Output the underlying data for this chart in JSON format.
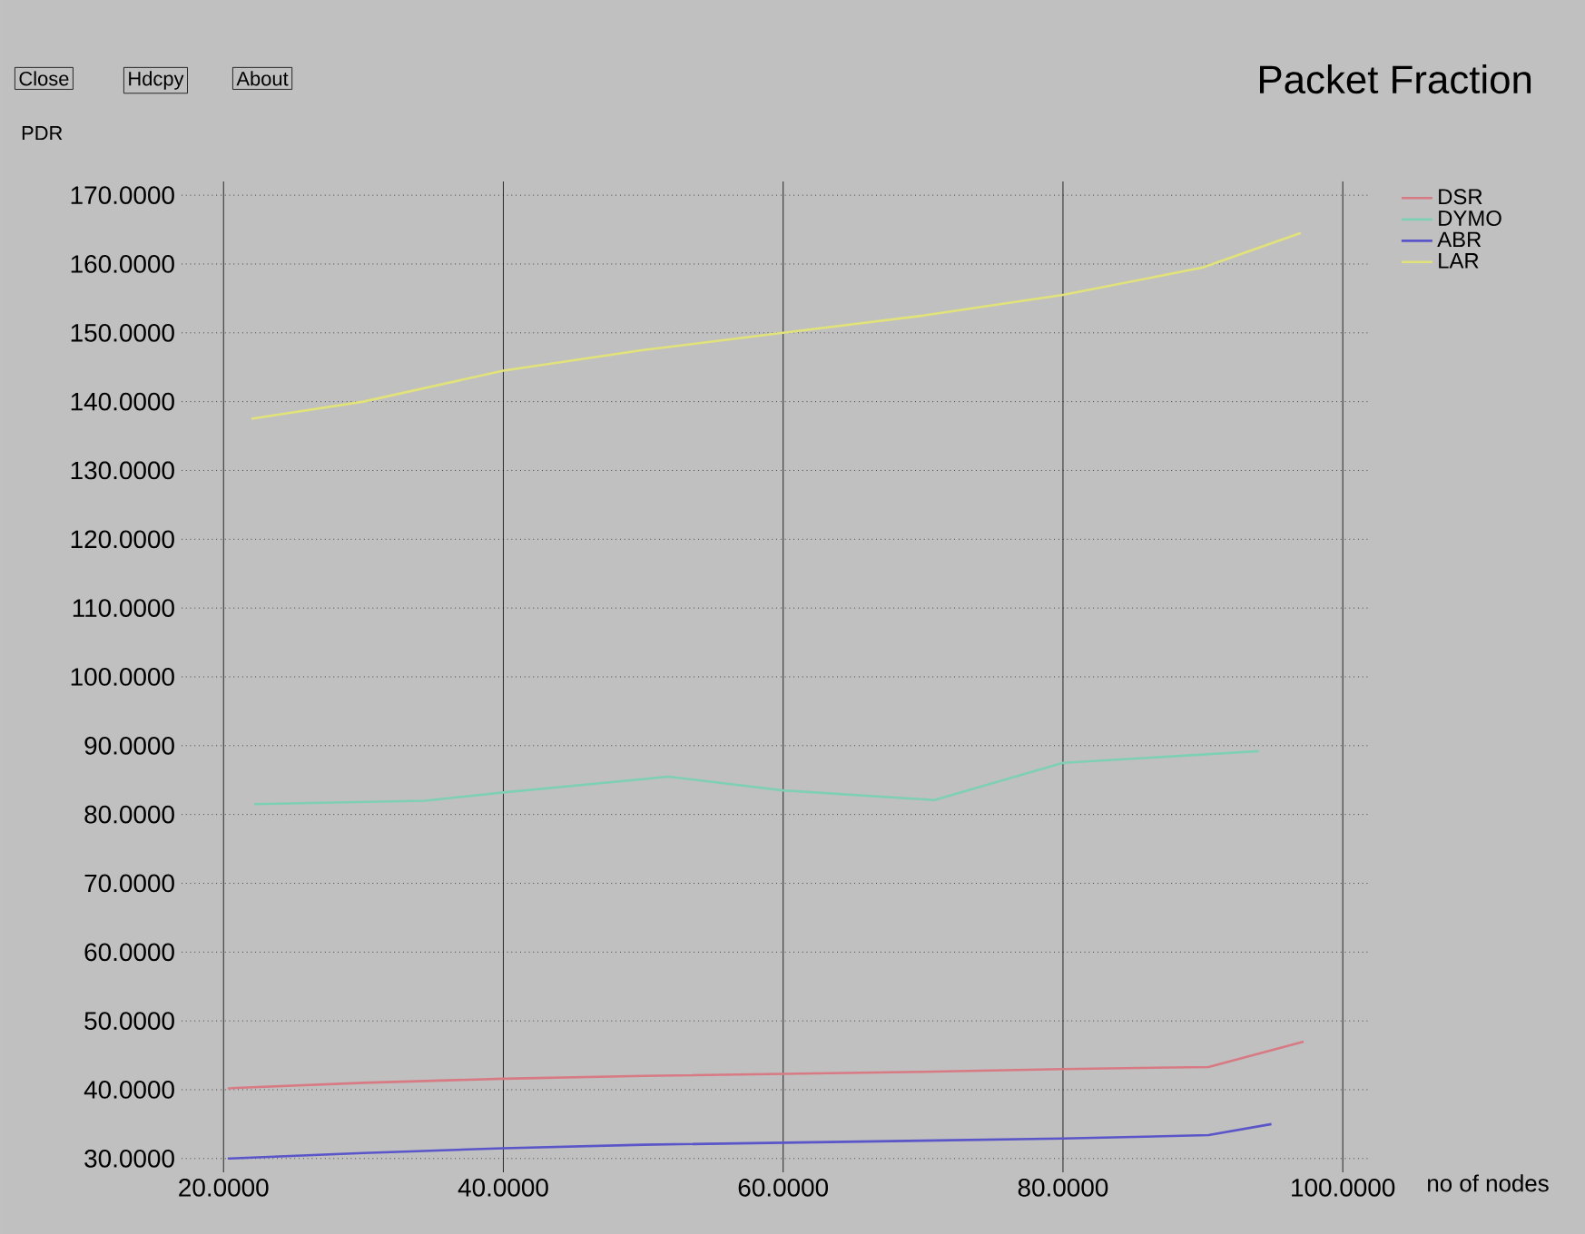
{
  "chart_data": {
    "type": "line",
    "title": "Packet Fraction",
    "xlabel": "no of nodes",
    "ylabel": "PDR",
    "annotations": [
      "Close",
      "Hdcpy",
      "About"
    ],
    "series": [
      {
        "name": "DSR",
        "color": "#d87a84",
        "x": [
          20.3,
          30,
          40,
          50,
          60,
          70,
          80,
          90.4,
          97.2
        ],
        "values": [
          40.2,
          41,
          41.6,
          42,
          42.3,
          42.6,
          43,
          43.3,
          47
        ]
      },
      {
        "name": "DYMO",
        "color": "#7fcfb4",
        "x": [
          22.2,
          34.4,
          40,
          51.8,
          60,
          70.8,
          80,
          94
        ],
        "values": [
          81.5,
          82,
          83.2,
          85.5,
          83.5,
          82.1,
          87.5,
          89.2
        ]
      },
      {
        "name": "ABR",
        "color": "#5a55c8",
        "x": [
          20.3,
          30,
          40,
          50,
          60,
          70,
          80,
          90.4,
          94.9
        ],
        "values": [
          30,
          30.8,
          31.5,
          32,
          32.3,
          32.6,
          32.9,
          33.4,
          35
        ]
      },
      {
        "name": "LAR",
        "color": "#e2e27a",
        "x": [
          22,
          30,
          40,
          50,
          60,
          70,
          80,
          90,
          97
        ],
        "values": [
          137.5,
          140,
          144.5,
          147.5,
          150,
          152.5,
          155.5,
          159.5,
          164.5
        ]
      }
    ],
    "xlim": [
      17,
      102
    ],
    "ylim": [
      28,
      172
    ],
    "xticks": [
      {
        "value": 20,
        "label": "20.0000"
      },
      {
        "value": 40,
        "label": "40.0000"
      },
      {
        "value": 60,
        "label": "60.0000"
      },
      {
        "value": 80,
        "label": "80.0000"
      },
      {
        "value": 100,
        "label": "100.0000"
      }
    ],
    "yticks": [
      {
        "value": 30,
        "label": "30.0000"
      },
      {
        "value": 40,
        "label": "40.0000"
      },
      {
        "value": 50,
        "label": "50.0000"
      },
      {
        "value": 60,
        "label": "60.0000"
      },
      {
        "value": 70,
        "label": "70.0000"
      },
      {
        "value": 80,
        "label": "80.0000"
      },
      {
        "value": 90,
        "label": "90.0000"
      },
      {
        "value": 100,
        "label": "100.0000"
      },
      {
        "value": 110,
        "label": "110.0000"
      },
      {
        "value": 120,
        "label": "120.0000"
      },
      {
        "value": 130,
        "label": "130.0000"
      },
      {
        "value": 140,
        "label": "140.0000"
      },
      {
        "value": 150,
        "label": "150.0000"
      },
      {
        "value": 160,
        "label": "160.0000"
      },
      {
        "value": 170,
        "label": "170.0000"
      }
    ],
    "grid": true,
    "legend": "top right",
    "marker": "none",
    "line_style": "solid"
  }
}
